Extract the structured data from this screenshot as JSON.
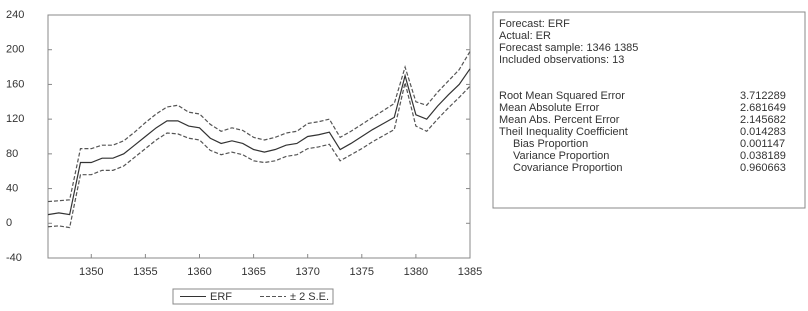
{
  "chart_data": {
    "type": "line",
    "x": [
      1346,
      1347,
      1348,
      1349,
      1350,
      1351,
      1352,
      1353,
      1354,
      1355,
      1356,
      1357,
      1358,
      1359,
      1360,
      1361,
      1362,
      1363,
      1364,
      1365,
      1366,
      1367,
      1368,
      1369,
      1370,
      1371,
      1372,
      1373,
      1374,
      1375,
      1376,
      1377,
      1378,
      1379,
      1380,
      1381,
      1382,
      1383,
      1384,
      1385
    ],
    "series": [
      {
        "name": "ERF",
        "color": "#333333",
        "style": "solid",
        "values": [
          10,
          12,
          10,
          70,
          70,
          75,
          75,
          80,
          90,
          100,
          110,
          118,
          118,
          112,
          110,
          98,
          92,
          95,
          92,
          85,
          82,
          85,
          90,
          92,
          100,
          102,
          105,
          85,
          92,
          100,
          108,
          115,
          122,
          170,
          125,
          120,
          135,
          148,
          160,
          178
        ]
      },
      {
        "name": "± 2 S.E.",
        "color": "#555555",
        "style": "dashed",
        "values": [
          25,
          26,
          27,
          86,
          86,
          90,
          90,
          95,
          105,
          116,
          126,
          134,
          136,
          128,
          126,
          114,
          106,
          110,
          107,
          99,
          96,
          99,
          104,
          106,
          115,
          117,
          120,
          99,
          106,
          114,
          122,
          130,
          138,
          180,
          140,
          136,
          151,
          164,
          177,
          198
        ]
      },
      {
        "color": "#555555",
        "style": "dashed",
        "values": [
          -4,
          -3,
          -5,
          56,
          56,
          61,
          61,
          66,
          76,
          86,
          96,
          104,
          103,
          98,
          96,
          84,
          79,
          82,
          79,
          72,
          70,
          72,
          77,
          79,
          86,
          88,
          91,
          72,
          79,
          86,
          94,
          101,
          108,
          162,
          112,
          106,
          120,
          133,
          145,
          158
        ]
      }
    ],
    "xlim": [
      1346,
      1385
    ],
    "xticks": [
      1350,
      1355,
      1360,
      1365,
      1370,
      1375,
      1380,
      1385
    ],
    "ylim": [
      -40,
      240
    ],
    "yticks": [
      -40,
      0,
      40,
      80,
      120,
      160,
      200,
      240
    ]
  },
  "forecast_stats": {
    "header": [
      "Forecast: ERF",
      "Actual: ER",
      "Forecast sample: 1346 1385",
      "Included observations: 13"
    ],
    "rows": [
      [
        "Root Mean Squared Error",
        "3.712289"
      ],
      [
        "Mean Absolute Error",
        "2.681649"
      ],
      [
        "Mean Abs. Percent Error",
        "2.145682"
      ],
      [
        "Theil Inequality Coefficient",
        "0.014283"
      ],
      [
        "Bias Proportion",
        "0.001147"
      ],
      [
        "Variance Proportion",
        "0.038189"
      ],
      [
        "Covariance Proportion",
        "0.960663"
      ]
    ]
  }
}
